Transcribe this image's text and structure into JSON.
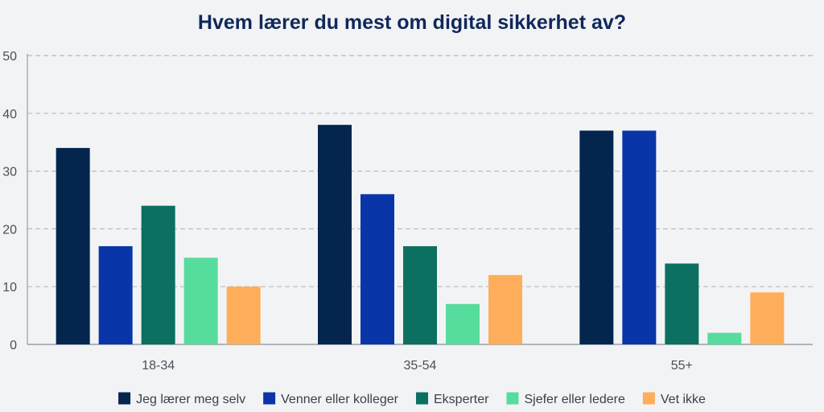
{
  "chart_data": {
    "type": "bar",
    "title": "Hvem lærer du mest om digital sikkerhet av?",
    "xlabel": "",
    "ylabel": "",
    "ylim": [
      0,
      50
    ],
    "yticks": [
      0,
      10,
      20,
      30,
      40,
      50
    ],
    "grid": true,
    "legend_position": "bottom",
    "categories": [
      "18-34",
      "35-54",
      "55+"
    ],
    "series": [
      {
        "name": "Jeg lærer meg selv",
        "color": "#03254e",
        "values": [
          34,
          38,
          37
        ]
      },
      {
        "name": "Venner eller kolleger",
        "color": "#0a35a8",
        "values": [
          17,
          26,
          37
        ]
      },
      {
        "name": "Eksperter",
        "color": "#0c7060",
        "values": [
          24,
          17,
          14
        ]
      },
      {
        "name": "Sjefer eller ledere",
        "color": "#56dc9c",
        "values": [
          15,
          7,
          2
        ]
      },
      {
        "name": "Vet ikke",
        "color": "#feae5a",
        "values": [
          10,
          12,
          9
        ]
      }
    ]
  }
}
